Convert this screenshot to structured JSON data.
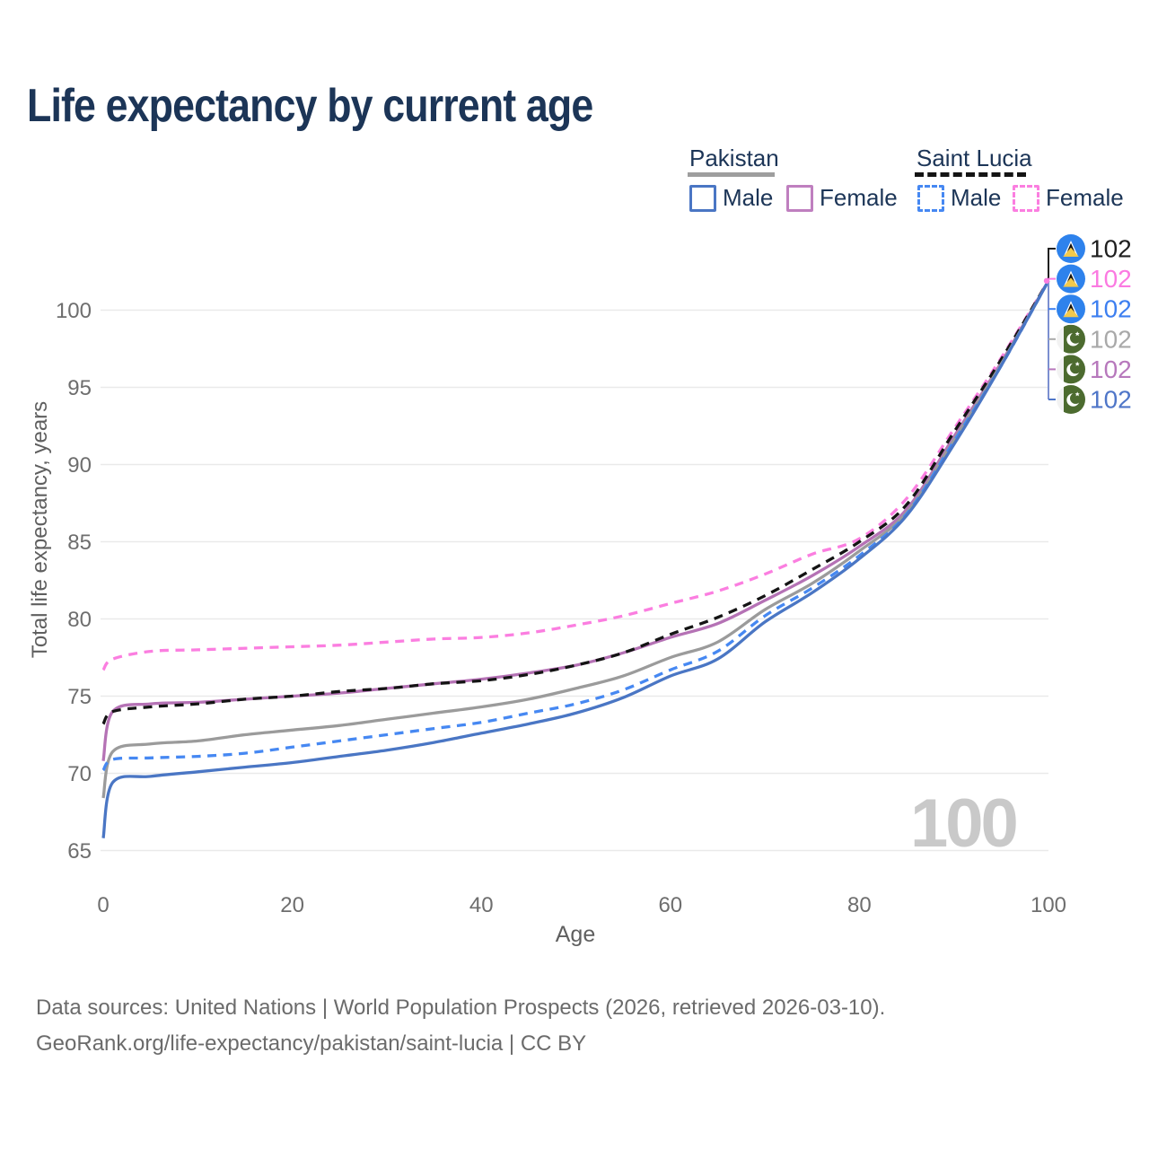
{
  "title": "Life expectancy by current age",
  "legend": {
    "groups": [
      {
        "country": "Pakistan",
        "line_style": "solid",
        "underline_color": "#9e9e9e",
        "items": [
          {
            "label": "Male",
            "color": "#4a76c4",
            "dashed": false
          },
          {
            "label": "Female",
            "color": "#bf7fbf",
            "dashed": false
          }
        ]
      },
      {
        "country": "Saint Lucia",
        "line_style": "dashed",
        "underline_color": "#141414",
        "items": [
          {
            "label": "Male",
            "color": "#4688f2",
            "dashed": true
          },
          {
            "label": "Female",
            "color": "#fb7ee0",
            "dashed": true
          }
        ]
      }
    ]
  },
  "chart_data": {
    "type": "line",
    "title": "Life expectancy by current age",
    "xlabel": "Age",
    "ylabel": "Total life expectancy, years",
    "x_ticks": [
      0,
      20,
      40,
      60,
      80,
      100
    ],
    "y_ticks": [
      65,
      70,
      75,
      80,
      85,
      90,
      95,
      100
    ],
    "xlim": [
      0,
      100
    ],
    "ylim": [
      64.5,
      103
    ],
    "grid": "horizontal",
    "ages": [
      0,
      1,
      5,
      10,
      15,
      20,
      25,
      30,
      35,
      40,
      45,
      50,
      55,
      60,
      65,
      70,
      75,
      80,
      85,
      90,
      95,
      100
    ],
    "series": [
      {
        "id": "saint-lucia-female",
        "country": "Saint Lucia",
        "sex": "Female",
        "color": "#fb7ee0",
        "dash": true,
        "values": [
          76.7,
          77.4,
          77.9,
          78.0,
          78.1,
          78.2,
          78.3,
          78.5,
          78.7,
          78.8,
          79.1,
          79.6,
          80.2,
          81.0,
          81.8,
          82.9,
          84.2,
          85.2,
          87.8,
          92.3,
          96.9,
          101.9
        ]
      },
      {
        "id": "pakistan-female",
        "country": "Pakistan",
        "sex": "Female",
        "color": "#b572b5",
        "dash": false,
        "values": [
          70.8,
          74.0,
          74.5,
          74.6,
          74.8,
          75.0,
          75.2,
          75.5,
          75.8,
          76.1,
          76.5,
          77.0,
          77.8,
          78.8,
          79.7,
          81.2,
          82.8,
          84.7,
          87.1,
          91.8,
          96.6,
          101.9
        ]
      },
      {
        "id": "saint-lucia-total",
        "country": "Saint Lucia",
        "sex": "Both",
        "color": "#141414",
        "dash": true,
        "values": [
          73.2,
          74.0,
          74.3,
          74.5,
          74.8,
          75.0,
          75.3,
          75.5,
          75.8,
          76.0,
          76.4,
          77.0,
          77.8,
          79.0,
          80.1,
          81.5,
          83.2,
          85.0,
          87.4,
          92.1,
          96.8,
          101.9
        ]
      },
      {
        "id": "pakistan-total",
        "country": "Pakistan",
        "sex": "Both",
        "color": "#9b9b9b",
        "dash": false,
        "values": [
          68.4,
          71.4,
          71.9,
          72.1,
          72.5,
          72.8,
          73.1,
          73.5,
          73.9,
          74.3,
          74.8,
          75.5,
          76.3,
          77.5,
          78.5,
          80.6,
          82.3,
          84.4,
          86.9,
          91.6,
          96.5,
          101.9
        ]
      },
      {
        "id": "saint-lucia-male",
        "country": "Saint Lucia",
        "sex": "Male",
        "color": "#4688f2",
        "dash": true,
        "values": [
          70.2,
          70.9,
          71.0,
          71.1,
          71.3,
          71.7,
          72.1,
          72.5,
          72.9,
          73.3,
          73.9,
          74.5,
          75.4,
          76.7,
          77.9,
          80.2,
          82.0,
          84.1,
          86.8,
          91.5,
          96.4,
          101.9
        ]
      },
      {
        "id": "pakistan-male",
        "country": "Pakistan",
        "sex": "Male",
        "color": "#4a76c4",
        "dash": false,
        "values": [
          65.8,
          69.4,
          69.8,
          70.1,
          70.4,
          70.7,
          71.1,
          71.5,
          72.0,
          72.6,
          73.2,
          73.9,
          74.9,
          76.3,
          77.4,
          79.8,
          81.7,
          83.9,
          86.7,
          91.3,
          96.4,
          101.9
        ]
      }
    ],
    "end_labels": [
      {
        "text": "102",
        "flag": "saint-lucia",
        "color": "#1f1f1f",
        "series": "saint-lucia-total"
      },
      {
        "text": "102",
        "flag": "saint-lucia",
        "color": "#fb7ae1",
        "series": "saint-lucia-female"
      },
      {
        "text": "102",
        "flag": "saint-lucia",
        "color": "#3d7ff0",
        "series": "saint-lucia-male"
      },
      {
        "text": "102",
        "flag": "pakistan",
        "color": "#a9a9a9",
        "series": "pakistan-total"
      },
      {
        "text": "102",
        "flag": "pakistan",
        "color": "#b778bc",
        "series": "pakistan-female"
      },
      {
        "text": "102",
        "flag": "pakistan",
        "color": "#4f76c8",
        "series": "pakistan-male"
      }
    ]
  },
  "watermark": "100",
  "footer": {
    "line1": "Data sources: United Nations | World Population Prospects (2026, retrieved 2026-03-10).",
    "line2": "GeoRank.org/life-expectancy/pakistan/saint-lucia | CC BY"
  }
}
